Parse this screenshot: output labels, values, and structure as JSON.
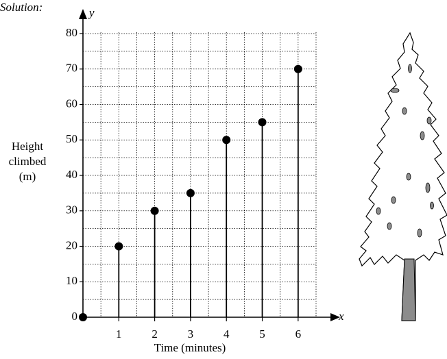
{
  "chart_data": {
    "type": "stem",
    "annotation": "Solution:",
    "x_axis_name": "x",
    "y_axis_name": "y",
    "xlabel": "Time (minutes)",
    "ylabel": [
      "Height",
      "climbed",
      "(m)"
    ],
    "x": [
      0,
      1,
      2,
      3,
      4,
      5,
      6
    ],
    "values": [
      0,
      20,
      30,
      35,
      50,
      55,
      70
    ],
    "color": "#000000",
    "xlim": [
      0,
      6.5
    ],
    "ylim": [
      0,
      80
    ],
    "xticks": [
      1,
      2,
      3,
      4,
      5,
      6
    ],
    "yticks": [
      0,
      10,
      20,
      30,
      40,
      50,
      60,
      70,
      80
    ],
    "x_minor_ticks": [
      0.5,
      1.5,
      2.5,
      3.5,
      4.5,
      5.5,
      6.5
    ],
    "y_minor_ticks": [
      5,
      15,
      25,
      35,
      45,
      55,
      65,
      75
    ],
    "grid": true
  }
}
